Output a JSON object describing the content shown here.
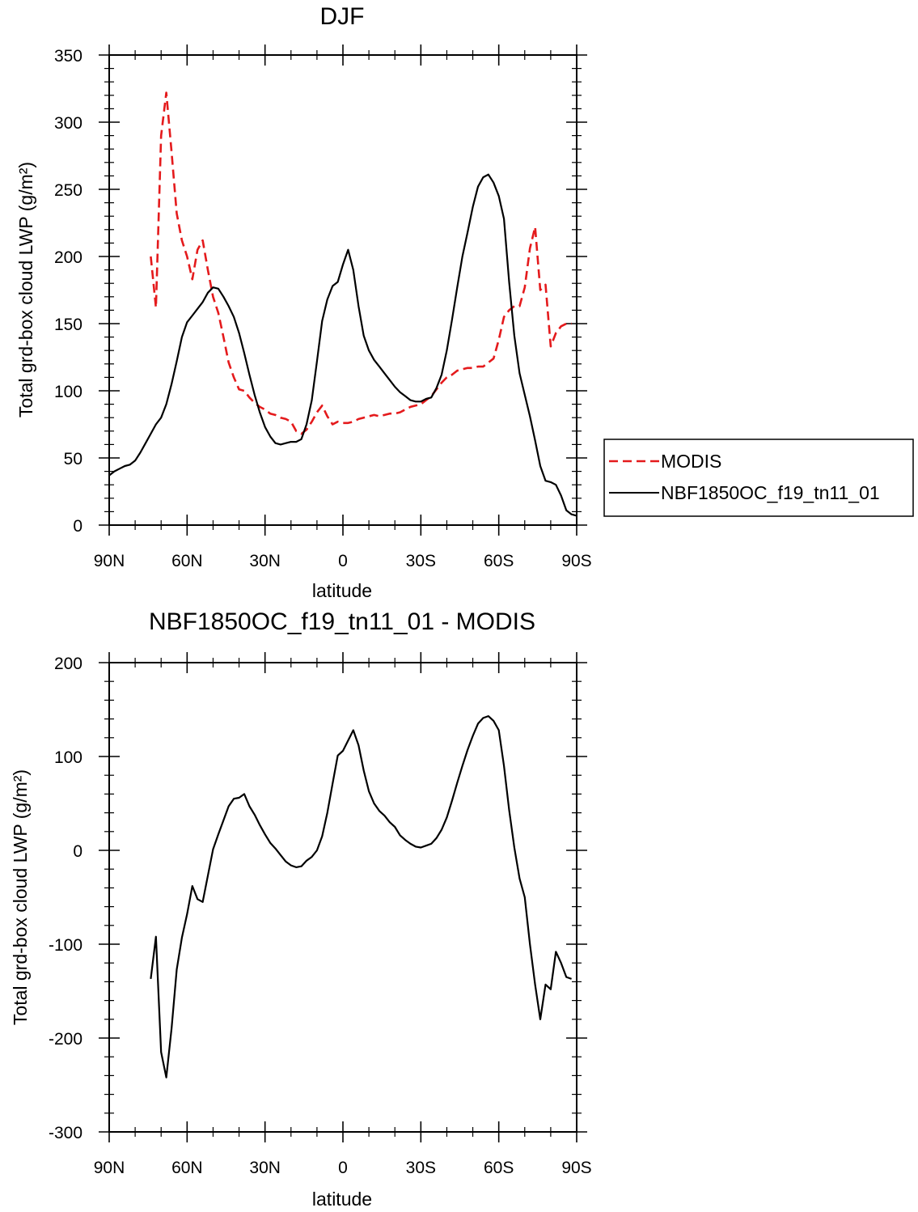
{
  "chart_data": [
    {
      "type": "line",
      "title": "DJF",
      "xlabel": "latitude",
      "ylabel": "Total grd-box cloud LWP (g/m²)",
      "ylim": [
        0,
        350
      ],
      "y_ticks": [
        0,
        50,
        100,
        150,
        200,
        250,
        300,
        350
      ],
      "xlim": [
        90,
        -90
      ],
      "x_ticks": [
        90,
        60,
        30,
        0,
        -30,
        -60,
        -90
      ],
      "x_tick_labels": [
        "90N",
        "60N",
        "30N",
        "0",
        "30S",
        "60S",
        "90S"
      ],
      "legend_position": "right",
      "series": [
        {
          "name": "MODIS",
          "color": "#e41a1c",
          "style": "dashed",
          "x": [
            74,
            72,
            70,
            68,
            66,
            64,
            62,
            60,
            58,
            56,
            54,
            52,
            50,
            48,
            46,
            44,
            42,
            40,
            38,
            36,
            34,
            32,
            30,
            28,
            26,
            24,
            22,
            20,
            18,
            16,
            14,
            12,
            10,
            8,
            6,
            4,
            2,
            0,
            -2,
            -4,
            -6,
            -8,
            -10,
            -12,
            -14,
            -16,
            -18,
            -20,
            -22,
            -24,
            -26,
            -28,
            -30,
            -32,
            -34,
            -36,
            -38,
            -40,
            -42,
            -44,
            -46,
            -48,
            -50,
            -52,
            -54,
            -56,
            -58,
            -60,
            -62,
            -64,
            -66,
            -68,
            -70,
            -72,
            -74,
            -76,
            -78,
            -80,
            -82,
            -84,
            -86,
            -88
          ],
          "y": [
            200,
            162,
            290,
            322,
            278,
            232,
            212,
            200,
            183,
            205,
            212,
            190,
            170,
            158,
            140,
            121,
            110,
            101,
            100,
            95,
            91,
            88,
            86,
            83,
            82,
            80,
            79,
            77,
            70,
            68,
            71,
            77,
            84,
            89,
            81,
            75,
            77,
            76,
            76,
            77,
            79,
            80,
            81,
            82,
            81,
            82,
            83,
            83,
            84,
            86,
            88,
            89,
            90,
            93,
            96,
            101,
            106,
            110,
            112,
            115,
            116,
            117,
            117,
            118,
            118,
            121,
            124,
            138,
            155,
            160,
            163,
            163,
            177,
            206,
            222,
            175,
            179,
            133,
            143,
            148,
            150,
            150
          ]
        },
        {
          "name": "NBF1850OC_f19_tn11_01",
          "color": "#000000",
          "style": "solid",
          "x": [
            90,
            88,
            86,
            84,
            82,
            80,
            78,
            76,
            74,
            72,
            70,
            68,
            66,
            64,
            62,
            60,
            58,
            56,
            54,
            52,
            50,
            48,
            46,
            44,
            42,
            40,
            38,
            36,
            34,
            32,
            30,
            28,
            26,
            24,
            22,
            20,
            18,
            16,
            14,
            12,
            10,
            8,
            6,
            4,
            2,
            0,
            -2,
            -4,
            -6,
            -8,
            -10,
            -12,
            -14,
            -16,
            -18,
            -20,
            -22,
            -24,
            -26,
            -28,
            -30,
            -32,
            -34,
            -36,
            -38,
            -40,
            -42,
            -44,
            -46,
            -48,
            -50,
            -52,
            -54,
            -56,
            -58,
            -60,
            -62,
            -64,
            -66,
            -68,
            -70,
            -72,
            -74,
            -76,
            -78,
            -80,
            -82,
            -84,
            -86,
            -88,
            -90
          ],
          "y": [
            37,
            40,
            42,
            44,
            45,
            48,
            54,
            61,
            68,
            75,
            80,
            90,
            105,
            122,
            140,
            151,
            156,
            161,
            166,
            173,
            177,
            176,
            170,
            163,
            155,
            143,
            128,
            112,
            97,
            84,
            73,
            66,
            61,
            60,
            61,
            62,
            62,
            64,
            75,
            93,
            122,
            152,
            168,
            178,
            181,
            194,
            205,
            190,
            163,
            141,
            130,
            123,
            118,
            113,
            108,
            103,
            99,
            96,
            93,
            92,
            92,
            94,
            95,
            102,
            112,
            130,
            153,
            177,
            200,
            218,
            237,
            252,
            259,
            261,
            255,
            245,
            228,
            181,
            141,
            113,
            97,
            81,
            63,
            44,
            33,
            32,
            30,
            22,
            11,
            8,
            7
          ]
        }
      ]
    },
    {
      "type": "line",
      "title": "NBF1850OC_f19_tn11_01 - MODIS",
      "xlabel": "latitude",
      "ylabel": "Total grd-box cloud LWP (g/m²)",
      "ylim": [
        -300,
        200
      ],
      "y_ticks": [
        -300,
        -200,
        -100,
        0,
        100,
        200
      ],
      "xlim": [
        90,
        -90
      ],
      "x_ticks": [
        90,
        60,
        30,
        0,
        -30,
        -60,
        -90
      ],
      "x_tick_labels": [
        "90N",
        "60N",
        "30N",
        "0",
        "30S",
        "60S",
        "90S"
      ],
      "series": [
        {
          "color": "#000000",
          "style": "solid",
          "x": [
            74,
            72,
            70,
            68,
            66,
            64,
            62,
            60,
            58,
            56,
            54,
            52,
            50,
            48,
            46,
            44,
            42,
            40,
            38,
            36,
            34,
            32,
            30,
            28,
            26,
            24,
            22,
            20,
            18,
            16,
            14,
            12,
            10,
            8,
            6,
            4,
            2,
            0,
            -2,
            -4,
            -6,
            -8,
            -10,
            -12,
            -14,
            -16,
            -18,
            -20,
            -22,
            -24,
            -26,
            -28,
            -30,
            -32,
            -34,
            -36,
            -38,
            -40,
            -42,
            -44,
            -46,
            -48,
            -50,
            -52,
            -54,
            -56,
            -58,
            -60,
            -62,
            -64,
            -66,
            -68,
            -70,
            -72,
            -74,
            -76,
            -78,
            -80,
            -82,
            -84,
            -86,
            -88
          ],
          "y": [
            -137,
            -92,
            -215,
            -242,
            -190,
            -127,
            -93,
            -68,
            -38,
            -52,
            -55,
            -27,
            1,
            17,
            32,
            47,
            55,
            56,
            60,
            47,
            38,
            27,
            17,
            8,
            2,
            -5,
            -12,
            -16,
            -18,
            -17,
            -11,
            -7,
            0,
            15,
            40,
            71,
            101,
            106,
            117,
            128,
            112,
            85,
            63,
            50,
            42,
            37,
            30,
            25,
            16,
            11,
            7,
            4,
            3,
            5,
            7,
            13,
            22,
            35,
            53,
            72,
            90,
            107,
            122,
            135,
            141,
            143,
            138,
            128,
            90,
            43,
            3,
            -30,
            -50,
            -100,
            -143,
            -180,
            -143,
            -148,
            -108,
            -120,
            -135,
            -137
          ]
        }
      ]
    }
  ]
}
